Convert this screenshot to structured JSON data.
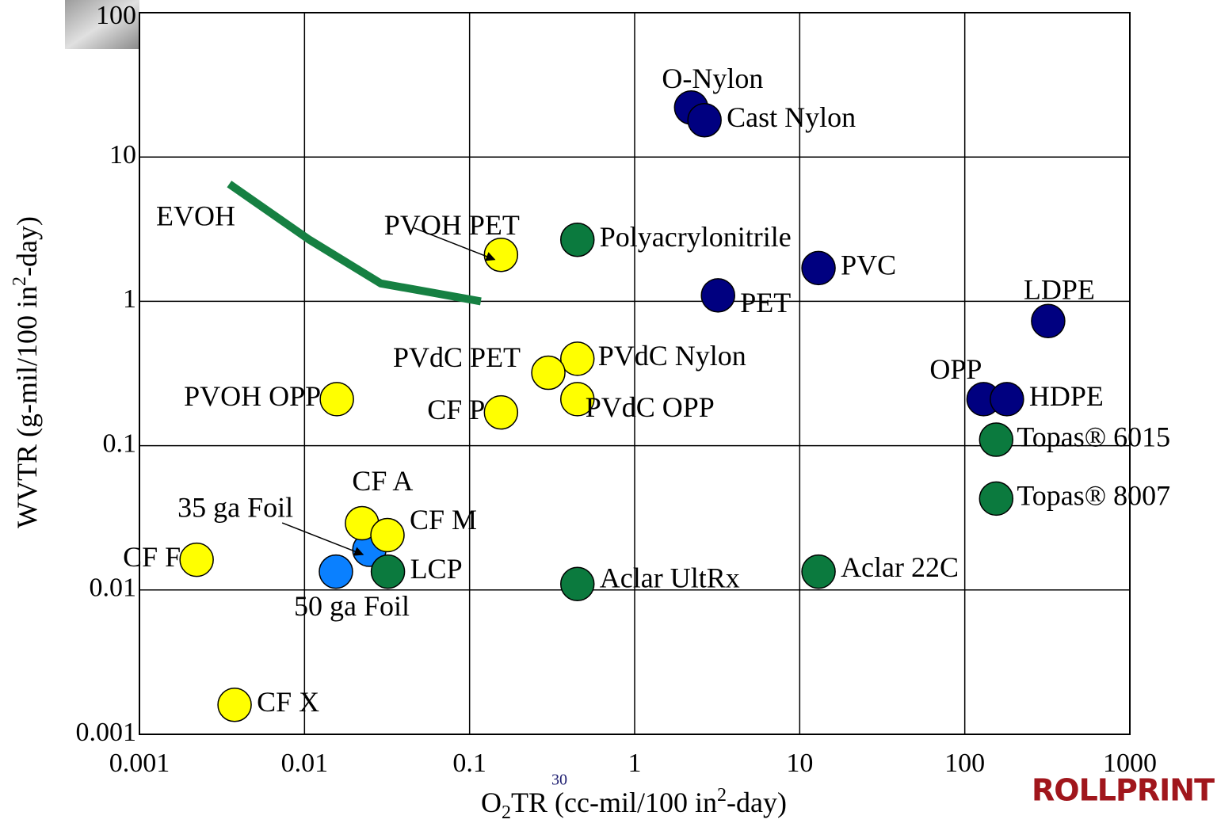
{
  "chart_data": {
    "type": "scatter",
    "xlabel": [
      "O",
      "2",
      "TR (cc-mil/100 in",
      "2",
      "-day)"
    ],
    "ylabel": [
      "WVTR (g-mil/100 in",
      "2",
      "-day)"
    ],
    "log_x": true,
    "log_y": true,
    "grid": true,
    "xlim": [
      0.001,
      1000
    ],
    "ylim": [
      0.001,
      100
    ],
    "xticks": [
      0.001,
      0.01,
      0.1,
      1,
      10,
      100,
      1000
    ],
    "yticks": [
      0.001,
      0.01,
      0.1,
      1,
      10,
      100
    ],
    "points": [
      {
        "label": "O-Nylon",
        "x": 2.2,
        "y": 22,
        "color": "#000080"
      },
      {
        "label": "Cast Nylon",
        "x": 2.65,
        "y": 18,
        "color": "#000080"
      },
      {
        "label": "PET",
        "x": 3.2,
        "y": 1.1,
        "color": "#000080"
      },
      {
        "label": "PVC",
        "x": 13,
        "y": 1.7,
        "color": "#000080"
      },
      {
        "label": "LDPE",
        "x": 320,
        "y": 0.73,
        "color": "#000080"
      },
      {
        "label": "OPP",
        "x": 130,
        "y": 0.21,
        "color": "#000080"
      },
      {
        "label": "HDPE",
        "x": 180,
        "y": 0.21,
        "color": "#000080"
      },
      {
        "label": "Topas® 6015",
        "x": 155,
        "y": 0.11,
        "color": "#0b7a3e"
      },
      {
        "label": "Topas® 8007",
        "x": 155,
        "y": 0.043,
        "color": "#0b7a3e"
      },
      {
        "label": "Aclar 22C",
        "x": 13,
        "y": 0.0134,
        "color": "#0b7a3e"
      },
      {
        "label": "Aclar UltRx",
        "x": 0.45,
        "y": 0.011,
        "color": "#0b7a3e"
      },
      {
        "label": "Polyacrylonitrile",
        "x": 0.45,
        "y": 2.67,
        "color": "#0b7a3e"
      },
      {
        "label": "PVOH PET",
        "x": 0.155,
        "y": 2.1,
        "color": "#ffff00"
      },
      {
        "label": "PVdC Nylon",
        "x": 0.45,
        "y": 0.4,
        "color": "#ffff00"
      },
      {
        "label": "PVdC PET",
        "x": 0.3,
        "y": 0.32,
        "color": "#ffff00"
      },
      {
        "label": "PVdC OPP",
        "x": 0.45,
        "y": 0.21,
        "color": "#ffff00"
      },
      {
        "label": "CF P",
        "x": 0.155,
        "y": 0.17,
        "color": "#ffff00"
      },
      {
        "label": "PVOH OPP",
        "x": 0.0157,
        "y": 0.21,
        "color": "#ffff00"
      },
      {
        "label": "35 ga Foil",
        "x": 0.0247,
        "y": 0.019,
        "color": "#0a80ff"
      },
      {
        "label": "CF A",
        "x": 0.0223,
        "y": 0.029,
        "color": "#ffff00"
      },
      {
        "label": "CF M",
        "x": 0.0318,
        "y": 0.024,
        "color": "#ffff00"
      },
      {
        "label": "LCP",
        "x": 0.032,
        "y": 0.0134,
        "color": "#0b7a3e"
      },
      {
        "label": "50 ga Foil",
        "x": 0.0155,
        "y": 0.0134,
        "color": "#0a80ff"
      },
      {
        "label": "CF F",
        "x": 0.00222,
        "y": 0.0162,
        "color": "#ffff00"
      },
      {
        "label": "CF X",
        "x": 0.00377,
        "y": 0.0016,
        "color": "#ffff00"
      }
    ],
    "lines": [
      {
        "label": "EVOH",
        "color": "#168042",
        "x": [
          0.0035,
          0.0107,
          0.029,
          0.117
        ],
        "y": [
          6.5,
          2.67,
          1.33,
          1.0
        ]
      }
    ],
    "page_number": "30",
    "logo": "ROLLPRINT"
  }
}
